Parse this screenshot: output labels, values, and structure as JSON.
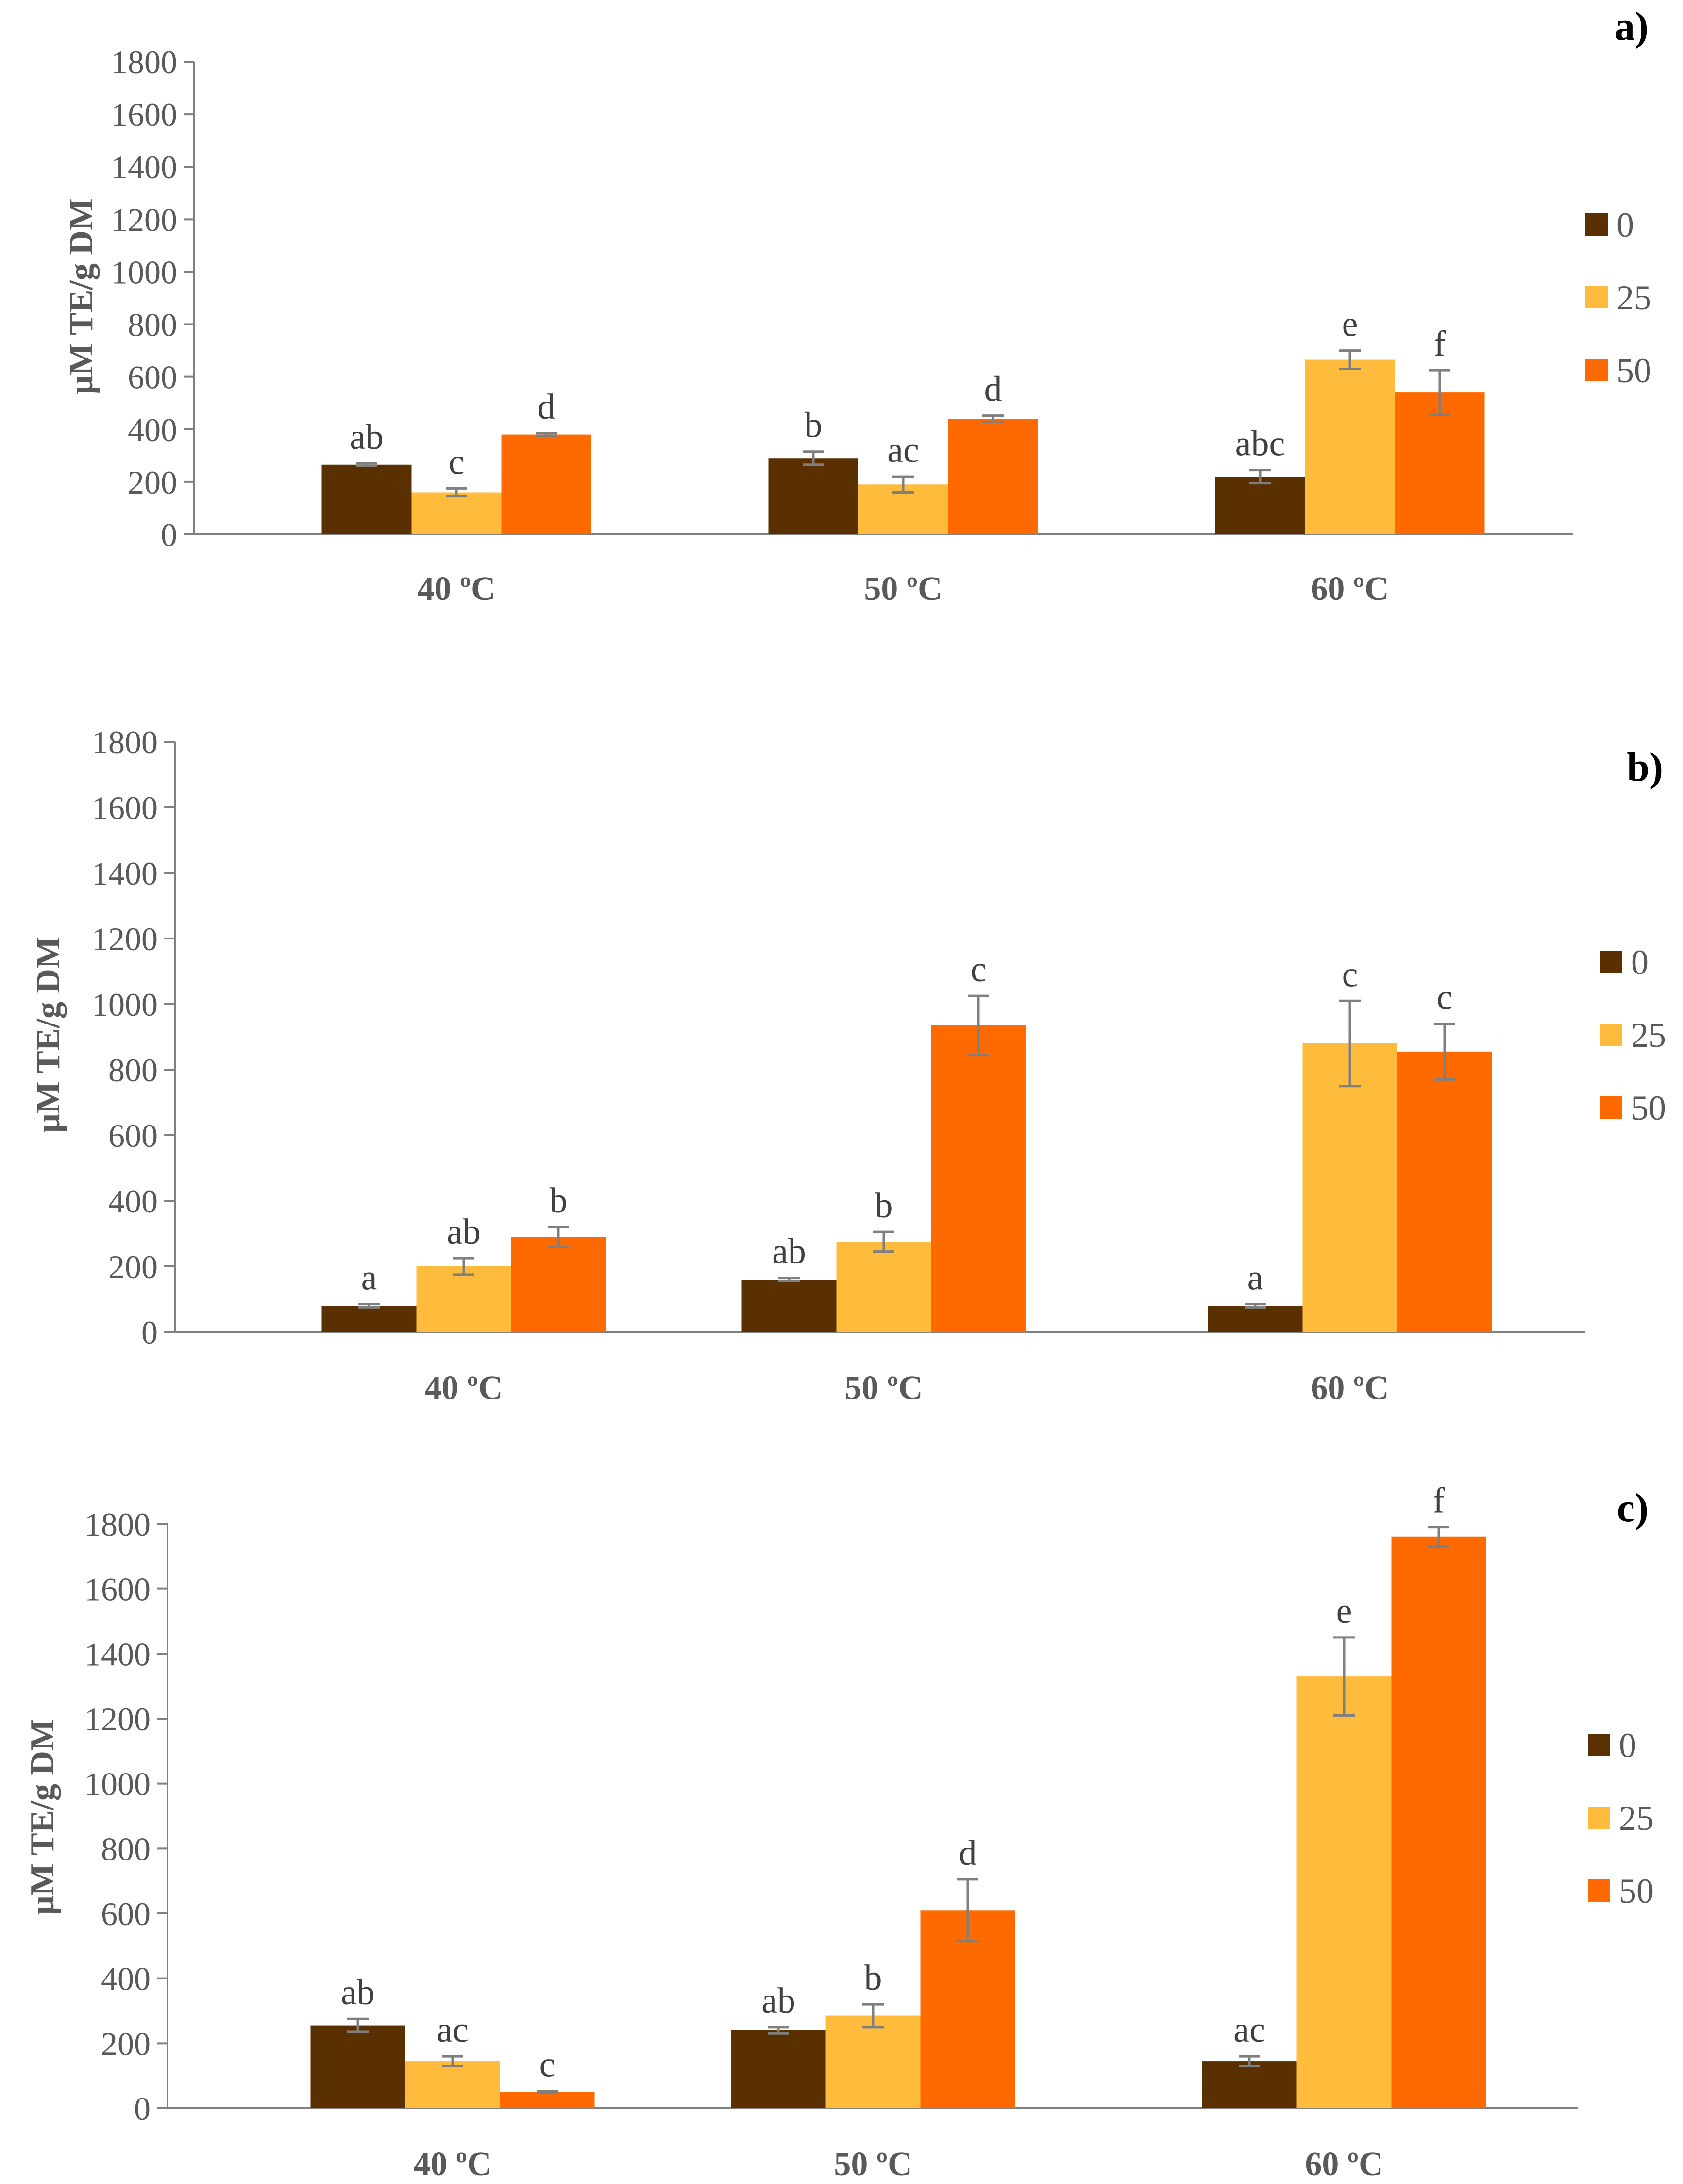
{
  "colors": {
    "s0": "#5A3000",
    "s25": "#FFBB3C",
    "s50": "#FF6A00",
    "axis": "#808080",
    "errorbar": "#7F7F7F"
  },
  "chart_data": [
    {
      "type": "bar",
      "panel_label": "a)",
      "ylabel": "μM TE/g DM",
      "ylim": [
        0,
        1800
      ],
      "yticks": [
        "0",
        "200",
        "400",
        "600",
        "800",
        "1000",
        "1200",
        "1400",
        "1600",
        "1800"
      ],
      "categories": [
        "40 ºC",
        "50 ºC",
        "60 ºC"
      ],
      "legend": "right",
      "series": [
        {
          "name": "0",
          "values": [
            265,
            290,
            220
          ],
          "errors": [
            5,
            25,
            25
          ],
          "labels": [
            "ab",
            "b",
            "abc"
          ]
        },
        {
          "name": "25",
          "values": [
            160,
            190,
            665
          ],
          "errors": [
            15,
            30,
            35
          ],
          "labels": [
            "c",
            "ac",
            "e"
          ]
        },
        {
          "name": "50",
          "values": [
            380,
            440,
            540
          ],
          "errors": [
            5,
            12,
            85
          ],
          "labels": [
            "d",
            "d",
            "f"
          ]
        }
      ]
    },
    {
      "type": "bar",
      "panel_label": "b)",
      "ylabel": "μM TE/g DM",
      "ylim": [
        0,
        1800
      ],
      "yticks": [
        "0",
        "200",
        "400",
        "600",
        "800",
        "1000",
        "1200",
        "1400",
        "1600",
        "1800"
      ],
      "categories": [
        "40 ºC",
        "50 ºC",
        "60 ºC"
      ],
      "legend": "right",
      "series": [
        {
          "name": "0",
          "values": [
            80,
            160,
            80
          ],
          "errors": [
            5,
            5,
            5
          ],
          "labels": [
            "a",
            "ab",
            "a"
          ]
        },
        {
          "name": "25",
          "values": [
            200,
            275,
            880
          ],
          "errors": [
            25,
            30,
            130
          ],
          "labels": [
            "ab",
            "b",
            "c"
          ]
        },
        {
          "name": "50",
          "values": [
            290,
            935,
            855
          ],
          "errors": [
            30,
            90,
            85
          ],
          "labels": [
            "b",
            "c",
            "c"
          ]
        }
      ]
    },
    {
      "type": "bar",
      "panel_label": "c)",
      "ylabel": "μM TE/g DM",
      "ylim": [
        0,
        1800
      ],
      "yticks": [
        "0",
        "200",
        "400",
        "600",
        "800",
        "1000",
        "1200",
        "1400",
        "1600",
        "1800"
      ],
      "categories": [
        "40 ºC",
        "50 ºC",
        "60 ºC"
      ],
      "legend": "right",
      "series": [
        {
          "name": "0",
          "values": [
            255,
            240,
            145
          ],
          "errors": [
            20,
            10,
            15
          ],
          "labels": [
            "ab",
            "ab",
            "ac"
          ]
        },
        {
          "name": "25",
          "values": [
            145,
            285,
            1330
          ],
          "errors": [
            15,
            35,
            120
          ],
          "labels": [
            "ac",
            "b",
            "e"
          ]
        },
        {
          "name": "50",
          "values": [
            50,
            610,
            1760
          ],
          "errors": [
            3,
            95,
            30
          ],
          "labels": [
            "c",
            "d",
            "f"
          ]
        }
      ]
    }
  ]
}
